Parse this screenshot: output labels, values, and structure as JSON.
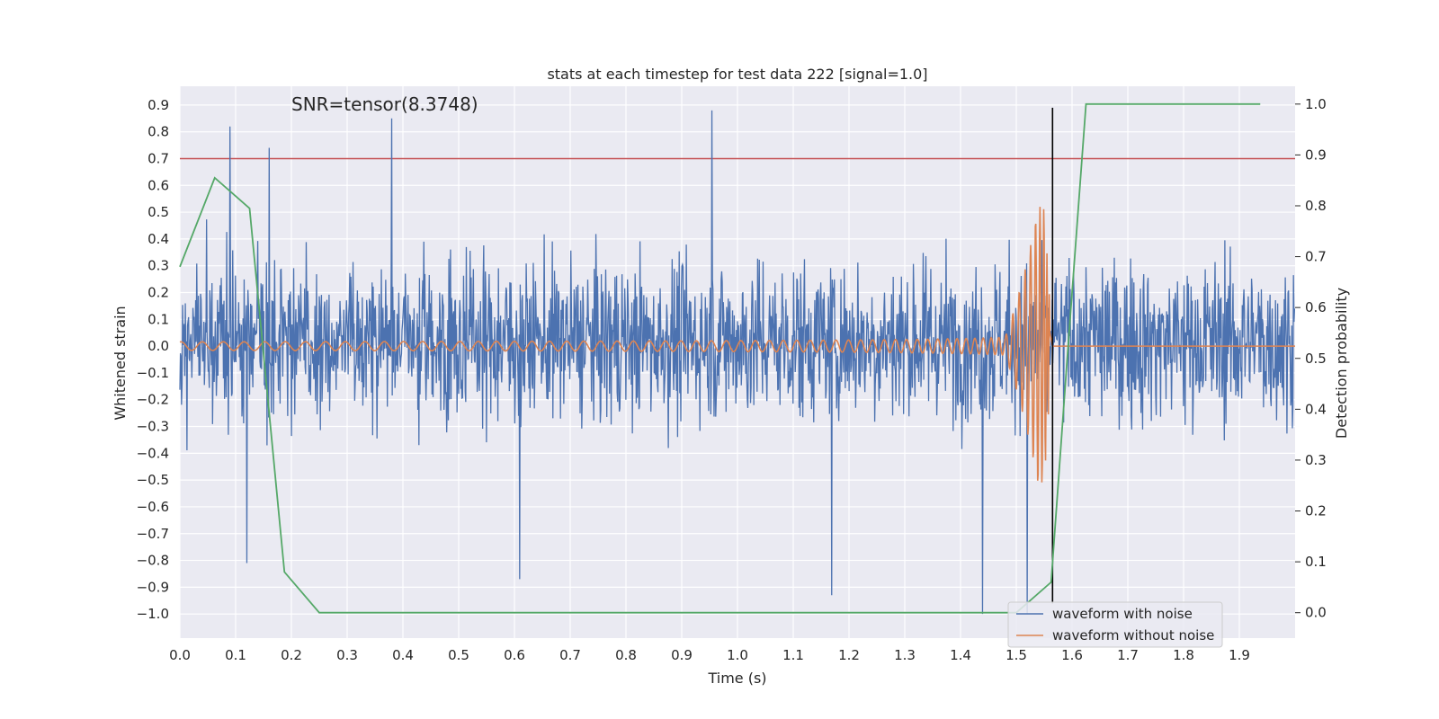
{
  "chart_data": {
    "type": "line",
    "title": "stats at each timestep for test data 222 [signal=1.0]",
    "annotation": "SNR=tensor(8.3748)",
    "xlabel": "Time (s)",
    "ylabel_left": "Whitened strain",
    "ylabel_right": "Detection probability",
    "xlim": [
      0.0,
      2.0
    ],
    "ylim_left": [
      -1.09,
      0.97
    ],
    "ylim_right": [
      -0.05,
      1.035
    ],
    "x_ticks": [
      "0.0",
      "0.1",
      "0.2",
      "0.3",
      "0.4",
      "0.5",
      "0.6",
      "0.7",
      "0.8",
      "0.9",
      "1.0",
      "1.1",
      "1.2",
      "1.3",
      "1.4",
      "1.5",
      "1.6",
      "1.7",
      "1.8",
      "1.9"
    ],
    "y_ticks_left": [
      "0.9",
      "0.8",
      "0.7",
      "0.6",
      "0.5",
      "0.4",
      "0.3",
      "0.2",
      "0.1",
      "0.0",
      "−0.1",
      "−0.2",
      "−0.3",
      "−0.4",
      "−0.5",
      "−0.6",
      "−0.7",
      "−0.8",
      "−0.9",
      "−1.0"
    ],
    "y_ticks_right": [
      "1.0",
      "0.9",
      "0.8",
      "0.7",
      "0.6",
      "0.5",
      "0.4",
      "0.3",
      "0.2",
      "0.1",
      "0.0"
    ],
    "grid": true,
    "legend_position": "lower-right",
    "threshold_line": {
      "axis": "left",
      "value": 0.7,
      "color": "#c44e52"
    },
    "merger_line": {
      "x": 1.565,
      "y_range": [
        -0.96,
        0.89
      ],
      "color": "#000000"
    },
    "series": [
      {
        "name": "waveform with noise",
        "axis": "left",
        "color": "#4c72b0",
        "description": "whitened noisy strain, amplitude roughly between -1.0 and 0.88",
        "spikes": [
          [
            0.09,
            0.82
          ],
          [
            0.16,
            0.74
          ],
          [
            0.38,
            0.85
          ],
          [
            0.955,
            0.88
          ],
          [
            1.44,
            -1.0
          ],
          [
            1.52,
            -1.0
          ],
          [
            1.17,
            -0.93
          ],
          [
            0.61,
            -0.87
          ],
          [
            0.12,
            -0.81
          ]
        ]
      },
      {
        "name": "waveform without noise",
        "axis": "left",
        "color": "#dd8452",
        "description": "chirp signal, small amplitude early, peak near 1.53 s, zero after 1.565 s",
        "t_merge": 1.55,
        "peak_amplitude": 0.52
      },
      {
        "name": "detection probability",
        "axis": "right",
        "color": "#55a868",
        "x": [
          0.0,
          0.0625,
          0.125,
          0.1875,
          0.25,
          0.3125,
          1.5,
          1.5625,
          1.59,
          1.625,
          1.9375
        ],
        "y": [
          0.68,
          0.855,
          0.795,
          0.08,
          0.0,
          0.0,
          0.0,
          0.06,
          0.48,
          1.0,
          1.0
        ]
      }
    ]
  }
}
